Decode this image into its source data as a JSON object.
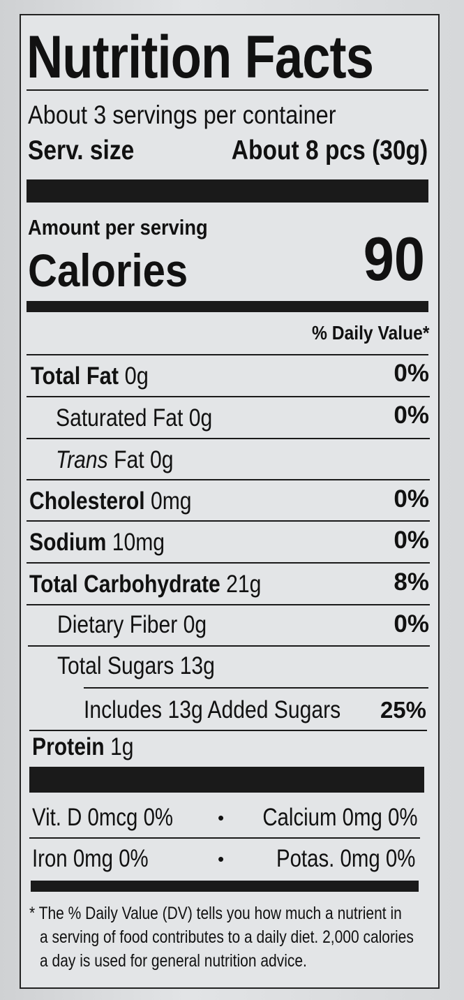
{
  "title": "Nutrition Facts",
  "servings_per_container": "About 3 servings per container",
  "serving_size_label": "Serv. size",
  "serving_size_value": "About 8 pcs (30g)",
  "amount_per_serving": "Amount per serving",
  "calories_label": "Calories",
  "calories_value": "90",
  "daily_value_header": "% Daily Value*",
  "nutrients": [
    {
      "name": "Total Fat",
      "amount": "0g",
      "dv": "0%"
    },
    {
      "name": "Saturated Fat",
      "amount": "0g",
      "dv": "0%"
    },
    {
      "name_italic": "Trans",
      "name": "Fat",
      "amount": "0g",
      "dv": ""
    },
    {
      "name": "Cholesterol",
      "amount": "0mg",
      "dv": "0%"
    },
    {
      "name": "Sodium",
      "amount": "10mg",
      "dv": "0%"
    },
    {
      "name": "Total Carbohydrate",
      "amount": "21g",
      "dv": "8%"
    },
    {
      "name": "Dietary Fiber",
      "amount": "0g",
      "dv": "0%"
    },
    {
      "name": "Total Sugars",
      "amount": "13g",
      "dv": ""
    },
    {
      "name": "Includes 13g Added Sugars",
      "amount": "",
      "dv": "25%"
    },
    {
      "name": "Protein",
      "amount": "1g",
      "dv": ""
    }
  ],
  "vitamins": [
    {
      "left": "Vit. D 0mcg 0%",
      "right": "Calcium 0mg 0%"
    },
    {
      "left": "Iron 0mg 0%",
      "right": "Potas. 0mg 0%"
    }
  ],
  "separator": "•",
  "footnote": {
    "line1": "* The % Daily Value (DV) tells you how much a nutrient in",
    "line2": "a serving of food contributes to a daily diet. 2,000 calories",
    "line3": "a day is used for general nutrition advice."
  }
}
